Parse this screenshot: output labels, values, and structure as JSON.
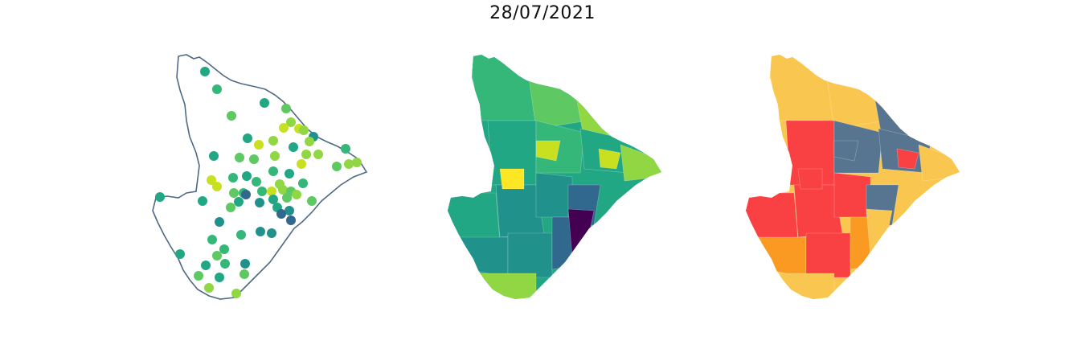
{
  "title": "28/07/2021",
  "colors": {
    "outline": "#4e6a84",
    "viridis": [
      "#440154",
      "#31688e",
      "#21918c",
      "#22a784",
      "#35b779",
      "#5ec962",
      "#90d743",
      "#c8e020",
      "#fde725"
    ],
    "categories": {
      "red": "#f94144",
      "orange": "#fb9a23",
      "yellow": "#f9c74f",
      "slate": "#577590"
    }
  },
  "panels": [
    {
      "kind": "station-points",
      "description_name": "station-point-map"
    },
    {
      "kind": "choropleth-continuous",
      "description_name": "municipality-choropleth"
    },
    {
      "kind": "choropleth-categorical",
      "description_name": "municipality-category-map"
    }
  ]
}
